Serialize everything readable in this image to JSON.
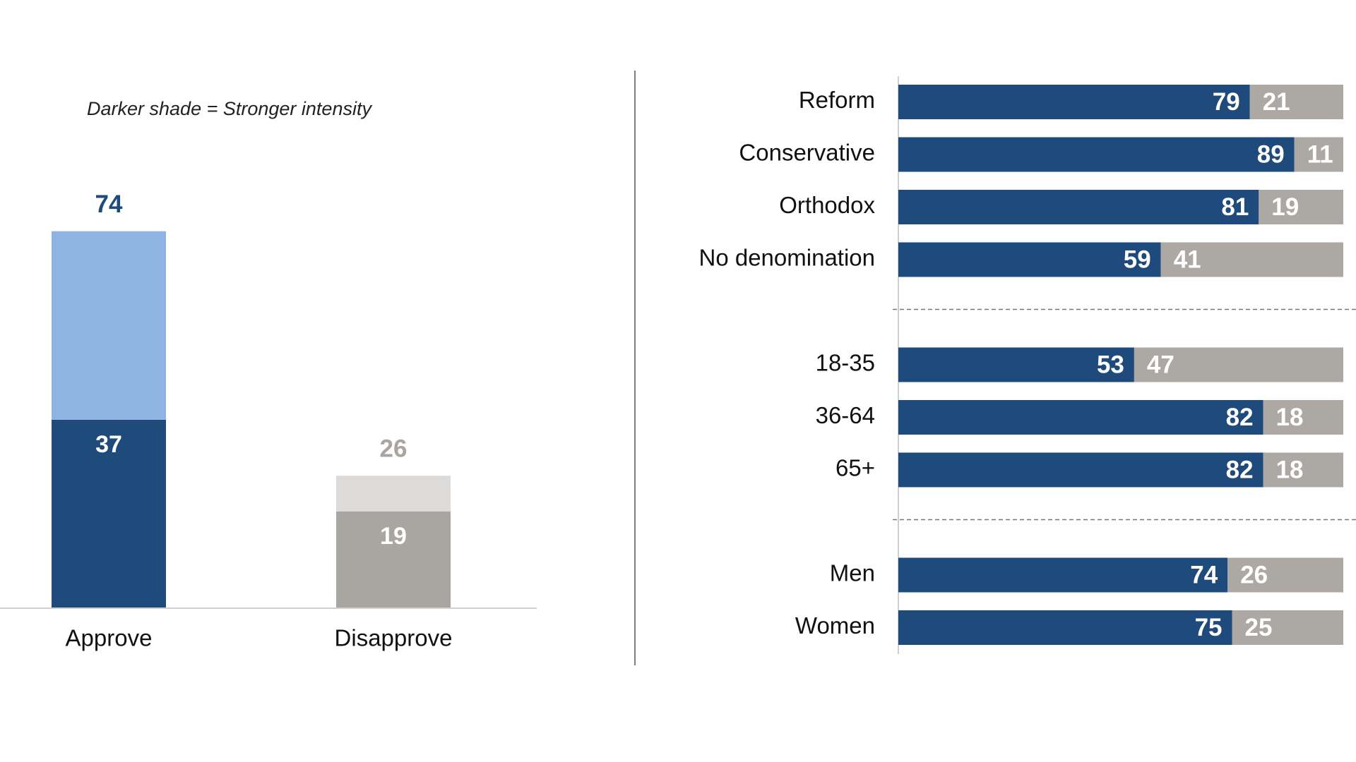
{
  "chart_data": [
    {
      "type": "stacked-bar",
      "annotation": "Darker shade = Stronger intensity",
      "categories": [
        "Approve",
        "Disapprove"
      ],
      "series": [
        {
          "colors": [
            "#1f4a7c",
            "#a9a5a1"
          ],
          "values": [
            37,
            19
          ],
          "labels": true
        },
        {
          "colors": [
            "#8fb4e3",
            "#dcdbda"
          ],
          "values": [
            37,
            7
          ],
          "labels": false
        }
      ],
      "totals": [
        74,
        26
      ],
      "ylim": [
        0,
        100
      ]
    },
    {
      "type": "horizontal-stacked-bar",
      "categories": [
        "Reform",
        "Conservative",
        "Orthodox",
        "No denomination",
        null,
        "18-35",
        "36-64",
        "65+",
        null,
        "Men",
        "Women"
      ],
      "series": [
        {
          "color": "#1f4a7c",
          "values": [
            79,
            89,
            81,
            59,
            null,
            53,
            82,
            82,
            null,
            74,
            75
          ]
        },
        {
          "color": "#aca8a4",
          "values": [
            21,
            11,
            19,
            41,
            null,
            47,
            18,
            18,
            null,
            26,
            25
          ]
        }
      ],
      "xlim": [
        0,
        100
      ]
    }
  ]
}
